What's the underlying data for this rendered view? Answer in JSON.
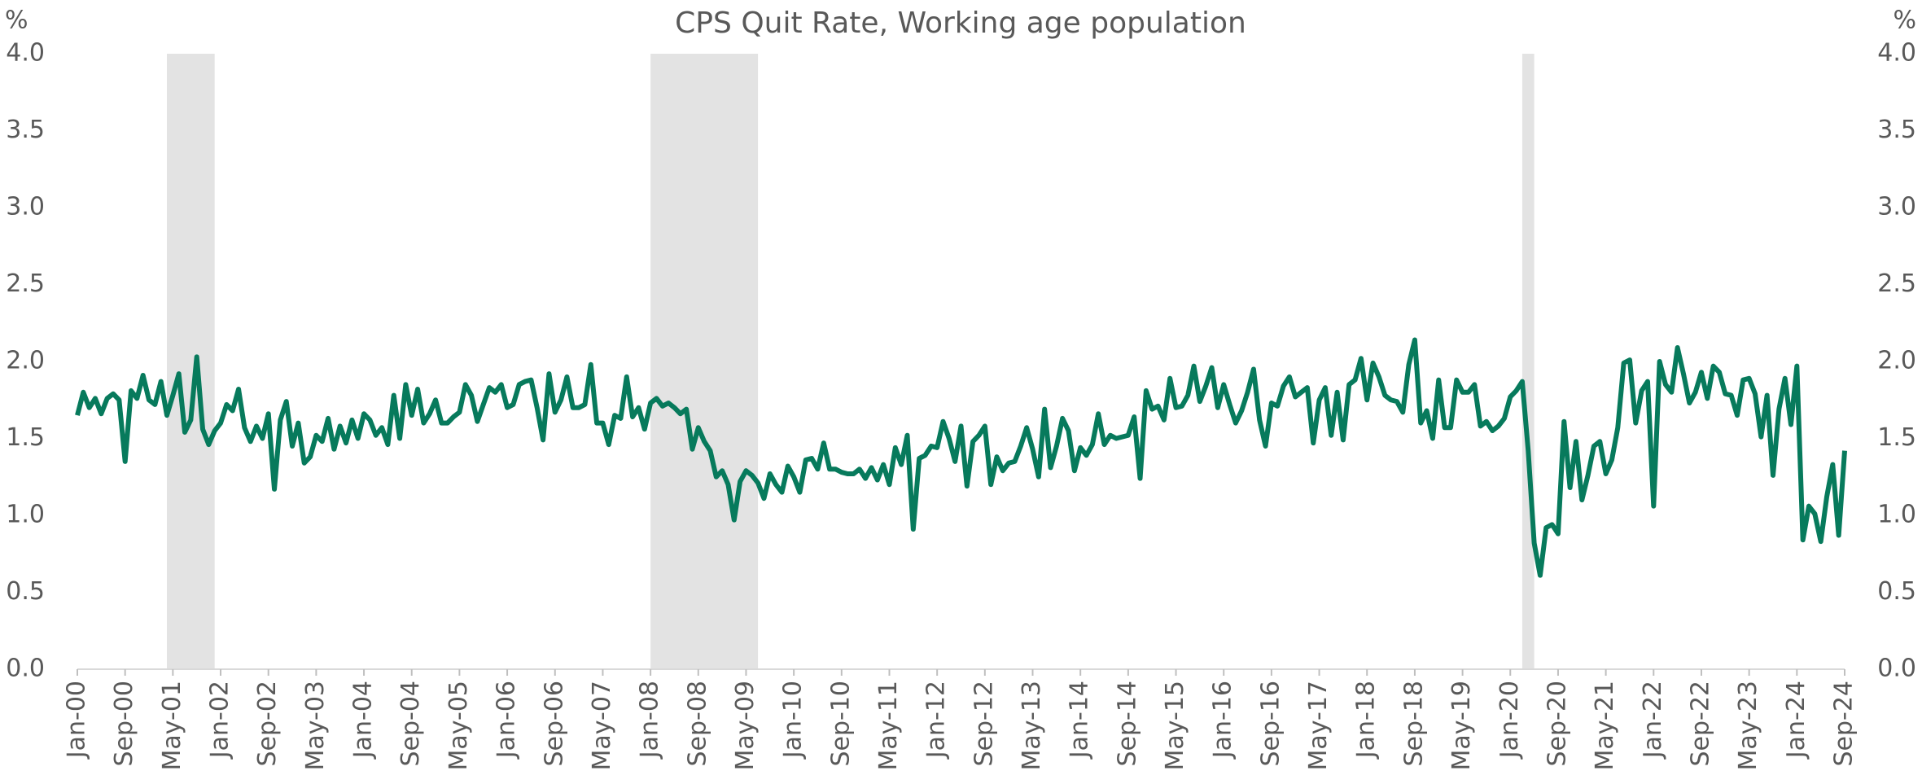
{
  "chart_data": {
    "type": "line",
    "title": "CPS Quit Rate, Working age population",
    "y_unit": "%",
    "y2_unit": "%",
    "categories": [
      "Jan-00",
      null,
      null,
      null,
      null,
      null,
      null,
      null,
      "Sep-00",
      null,
      null,
      null,
      null,
      null,
      null,
      null,
      "May-01",
      null,
      null,
      null,
      null,
      null,
      null,
      null,
      "Jan-02",
      null,
      null,
      null,
      null,
      null,
      null,
      null,
      "Sep-02",
      null,
      null,
      null,
      null,
      null,
      null,
      null,
      "May-03",
      null,
      null,
      null,
      null,
      null,
      null,
      null,
      "Jan-04",
      null,
      null,
      null,
      null,
      null,
      null,
      null,
      "Sep-04",
      null,
      null,
      null,
      null,
      null,
      null,
      null,
      "May-05",
      null,
      null,
      null,
      null,
      null,
      null,
      null,
      "Jan-06",
      null,
      null,
      null,
      null,
      null,
      null,
      null,
      "Sep-06",
      null,
      null,
      null,
      null,
      null,
      null,
      null,
      "May-07",
      null,
      null,
      null,
      null,
      null,
      null,
      null,
      "Jan-08",
      null,
      null,
      null,
      null,
      null,
      null,
      null,
      "Sep-08",
      null,
      null,
      null,
      null,
      null,
      null,
      null,
      "May-09",
      null,
      null,
      null,
      null,
      null,
      null,
      null,
      "Jan-10",
      null,
      null,
      null,
      null,
      null,
      null,
      null,
      "Sep-10",
      null,
      null,
      null,
      null,
      null,
      null,
      null,
      "May-11",
      null,
      null,
      null,
      null,
      null,
      null,
      null,
      "Jan-12",
      null,
      null,
      null,
      null,
      null,
      null,
      null,
      "Sep-12",
      null,
      null,
      null,
      null,
      null,
      null,
      null,
      "May-13",
      null,
      null,
      null,
      null,
      null,
      null,
      null,
      "Jan-14",
      null,
      null,
      null,
      null,
      null,
      null,
      null,
      "Sep-14",
      null,
      null,
      null,
      null,
      null,
      null,
      null,
      "May-15",
      null,
      null,
      null,
      null,
      null,
      null,
      null,
      "Jan-16",
      null,
      null,
      null,
      null,
      null,
      null,
      null,
      "Sep-16",
      null,
      null,
      null,
      null,
      null,
      null,
      null,
      "May-17",
      null,
      null,
      null,
      null,
      null,
      null,
      null,
      "Jan-18",
      null,
      null,
      null,
      null,
      null,
      null,
      null,
      "Sep-18",
      null,
      null,
      null,
      null,
      null,
      null,
      null,
      "May-19",
      null,
      null,
      null,
      null,
      null,
      null,
      null,
      "Jan-20",
      null,
      null,
      null,
      null,
      null,
      null,
      null,
      "Sep-20",
      null,
      null,
      null,
      null,
      null,
      null,
      null,
      "May-21",
      null,
      null,
      null,
      null,
      null,
      null,
      null,
      "Jan-22",
      null,
      null,
      null,
      null,
      null,
      null,
      null,
      "Sep-22",
      null,
      null,
      null,
      null,
      null,
      null,
      null,
      "May-23",
      null,
      null,
      null,
      null,
      null,
      null,
      null,
      "Jan-24",
      null,
      null,
      null,
      null,
      null,
      null,
      null,
      "Sep-24"
    ],
    "series": [
      {
        "color": "#077a5c",
        "values": [
          1.65,
          1.8,
          1.7,
          1.76,
          1.66,
          1.76,
          1.79,
          1.75,
          1.35,
          1.81,
          1.76,
          1.91,
          1.75,
          1.72,
          1.87,
          1.65,
          1.78,
          1.92,
          1.54,
          1.62,
          2.03,
          1.56,
          1.46,
          1.55,
          1.6,
          1.72,
          1.68,
          1.82,
          1.57,
          1.48,
          1.58,
          1.5,
          1.66,
          1.17,
          1.62,
          1.74,
          1.45,
          1.6,
          1.34,
          1.38,
          1.52,
          1.48,
          1.63,
          1.43,
          1.58,
          1.47,
          1.62,
          1.5,
          1.66,
          1.62,
          1.52,
          1.57,
          1.46,
          1.78,
          1.5,
          1.85,
          1.65,
          1.82,
          1.6,
          1.66,
          1.75,
          1.6,
          1.6,
          1.64,
          1.67,
          1.85,
          1.78,
          1.61,
          1.72,
          1.83,
          1.8,
          1.85,
          1.7,
          1.72,
          1.85,
          1.87,
          1.88,
          1.7,
          1.49,
          1.92,
          1.67,
          1.75,
          1.9,
          1.7,
          1.7,
          1.72,
          1.98,
          1.6,
          1.6,
          1.46,
          1.65,
          1.63,
          1.9,
          1.64,
          1.7,
          1.56,
          1.73,
          1.76,
          1.71,
          1.73,
          1.7,
          1.66,
          1.69,
          1.43,
          1.57,
          1.48,
          1.42,
          1.25,
          1.29,
          1.2,
          0.97,
          1.22,
          1.29,
          1.26,
          1.21,
          1.11,
          1.27,
          1.2,
          1.15,
          1.32,
          1.25,
          1.15,
          1.36,
          1.37,
          1.3,
          1.47,
          1.3,
          1.3,
          1.28,
          1.27,
          1.27,
          1.3,
          1.24,
          1.31,
          1.23,
          1.33,
          1.2,
          1.44,
          1.33,
          1.52,
          0.91,
          1.37,
          1.39,
          1.45,
          1.44,
          1.61,
          1.5,
          1.35,
          1.58,
          1.19,
          1.48,
          1.52,
          1.58,
          1.2,
          1.38,
          1.29,
          1.34,
          1.35,
          1.45,
          1.57,
          1.43,
          1.25,
          1.69,
          1.31,
          1.45,
          1.63,
          1.55,
          1.29,
          1.44,
          1.39,
          1.46,
          1.66,
          1.46,
          1.52,
          1.5,
          1.51,
          1.52,
          1.64,
          1.24,
          1.81,
          1.69,
          1.71,
          1.62,
          1.89,
          1.7,
          1.71,
          1.78,
          1.97,
          1.74,
          1.84,
          1.96,
          1.7,
          1.85,
          1.72,
          1.6,
          1.68,
          1.8,
          1.95,
          1.62,
          1.45,
          1.73,
          1.71,
          1.84,
          1.9,
          1.77,
          1.8,
          1.83,
          1.47,
          1.75,
          1.83,
          1.52,
          1.8,
          1.49,
          1.85,
          1.88,
          2.02,
          1.75,
          1.99,
          1.9,
          1.78,
          1.75,
          1.74,
          1.67,
          1.98,
          2.14,
          1.6,
          1.68,
          1.5,
          1.88,
          1.57,
          1.57,
          1.88,
          1.8,
          1.8,
          1.85,
          1.58,
          1.61,
          1.55,
          1.58,
          1.63,
          1.77,
          1.81,
          1.87,
          1.42,
          0.82,
          0.61,
          0.92,
          0.94,
          0.88,
          1.61,
          1.18,
          1.48,
          1.1,
          1.26,
          1.45,
          1.48,
          1.27,
          1.36,
          1.57,
          1.99,
          2.01,
          1.6,
          1.81,
          1.87,
          1.06,
          2.0,
          1.85,
          1.8,
          2.09,
          1.92,
          1.73,
          1.8,
          1.93,
          1.76,
          1.97,
          1.93,
          1.79,
          1.78,
          1.65,
          1.88,
          1.89,
          1.79,
          1.51,
          1.78,
          1.26,
          1.69,
          1.89,
          1.59,
          1.97,
          0.84,
          1.06,
          1.01,
          0.83,
          1.12,
          1.33,
          0.87,
          1.42
        ]
      }
    ],
    "shaded_periods": [
      [
        15,
        23
      ],
      [
        96,
        114
      ],
      [
        242,
        244
      ]
    ],
    "shade_color": "#e3e3e3",
    "ylim": [
      0,
      4
    ],
    "yticks": [
      {
        "value": 0,
        "label": "0.0"
      },
      0.5,
      {
        "value": 1,
        "label": "1.0"
      },
      1.5,
      {
        "value": 2,
        "label": "2.0"
      },
      2.5,
      {
        "value": 3,
        "label": "3.0"
      },
      3.5,
      {
        "value": 4,
        "label": "4.0"
      }
    ],
    "y2lim": [
      0,
      4
    ],
    "y2ticks": [
      {
        "value": 0,
        "label": "0.0"
      },
      0.5,
      {
        "value": 1,
        "label": "1.0"
      },
      1.5,
      {
        "value": 2,
        "label": "2.0"
      },
      2.5,
      {
        "value": 3,
        "label": "3.0"
      },
      3.5,
      {
        "value": 4,
        "label": "4.0"
      }
    ],
    "grid": false
  }
}
